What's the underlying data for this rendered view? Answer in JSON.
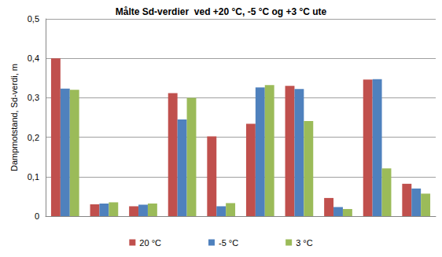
{
  "chart_data": {
    "type": "bar",
    "title": "Målte Sd-verdier  ved +20 °C, -5 °C og +3 °C ute",
    "y_label": "Dampmotstand, Sd-verdi, m",
    "categories": [
      null,
      null,
      null,
      null,
      null,
      null,
      null,
      null,
      null,
      null
    ],
    "series": [
      {
        "name": "20 °C",
        "color": "#c0504d",
        "values": [
          0.4,
          0.03,
          0.025,
          0.312,
          0.202,
          0.234,
          0.33,
          0.046,
          0.346,
          0.082
        ]
      },
      {
        "name": "-5 °C",
        "color": "#4f81bd",
        "values": [
          0.323,
          0.032,
          0.029,
          0.245,
          0.025,
          0.326,
          0.322,
          0.023,
          0.347,
          0.07
        ]
      },
      {
        "name": "3 °C",
        "color": "#9bbb59",
        "values": [
          0.32,
          0.035,
          0.032,
          0.3,
          0.033,
          0.332,
          0.241,
          0.018,
          0.121,
          0.057
        ]
      }
    ],
    "ylim": [
      0,
      0.5
    ],
    "yticks": [
      0,
      {
        "value": 0.1,
        "label": "0,1"
      },
      {
        "value": 0.2,
        "label": "0,2"
      },
      {
        "value": 0.3,
        "label": "0,3"
      },
      {
        "value": 0.4,
        "label": "0,4"
      },
      {
        "value": 0.5,
        "label": "0,5"
      }
    ],
    "grid": true,
    "legend": "bottom"
  }
}
